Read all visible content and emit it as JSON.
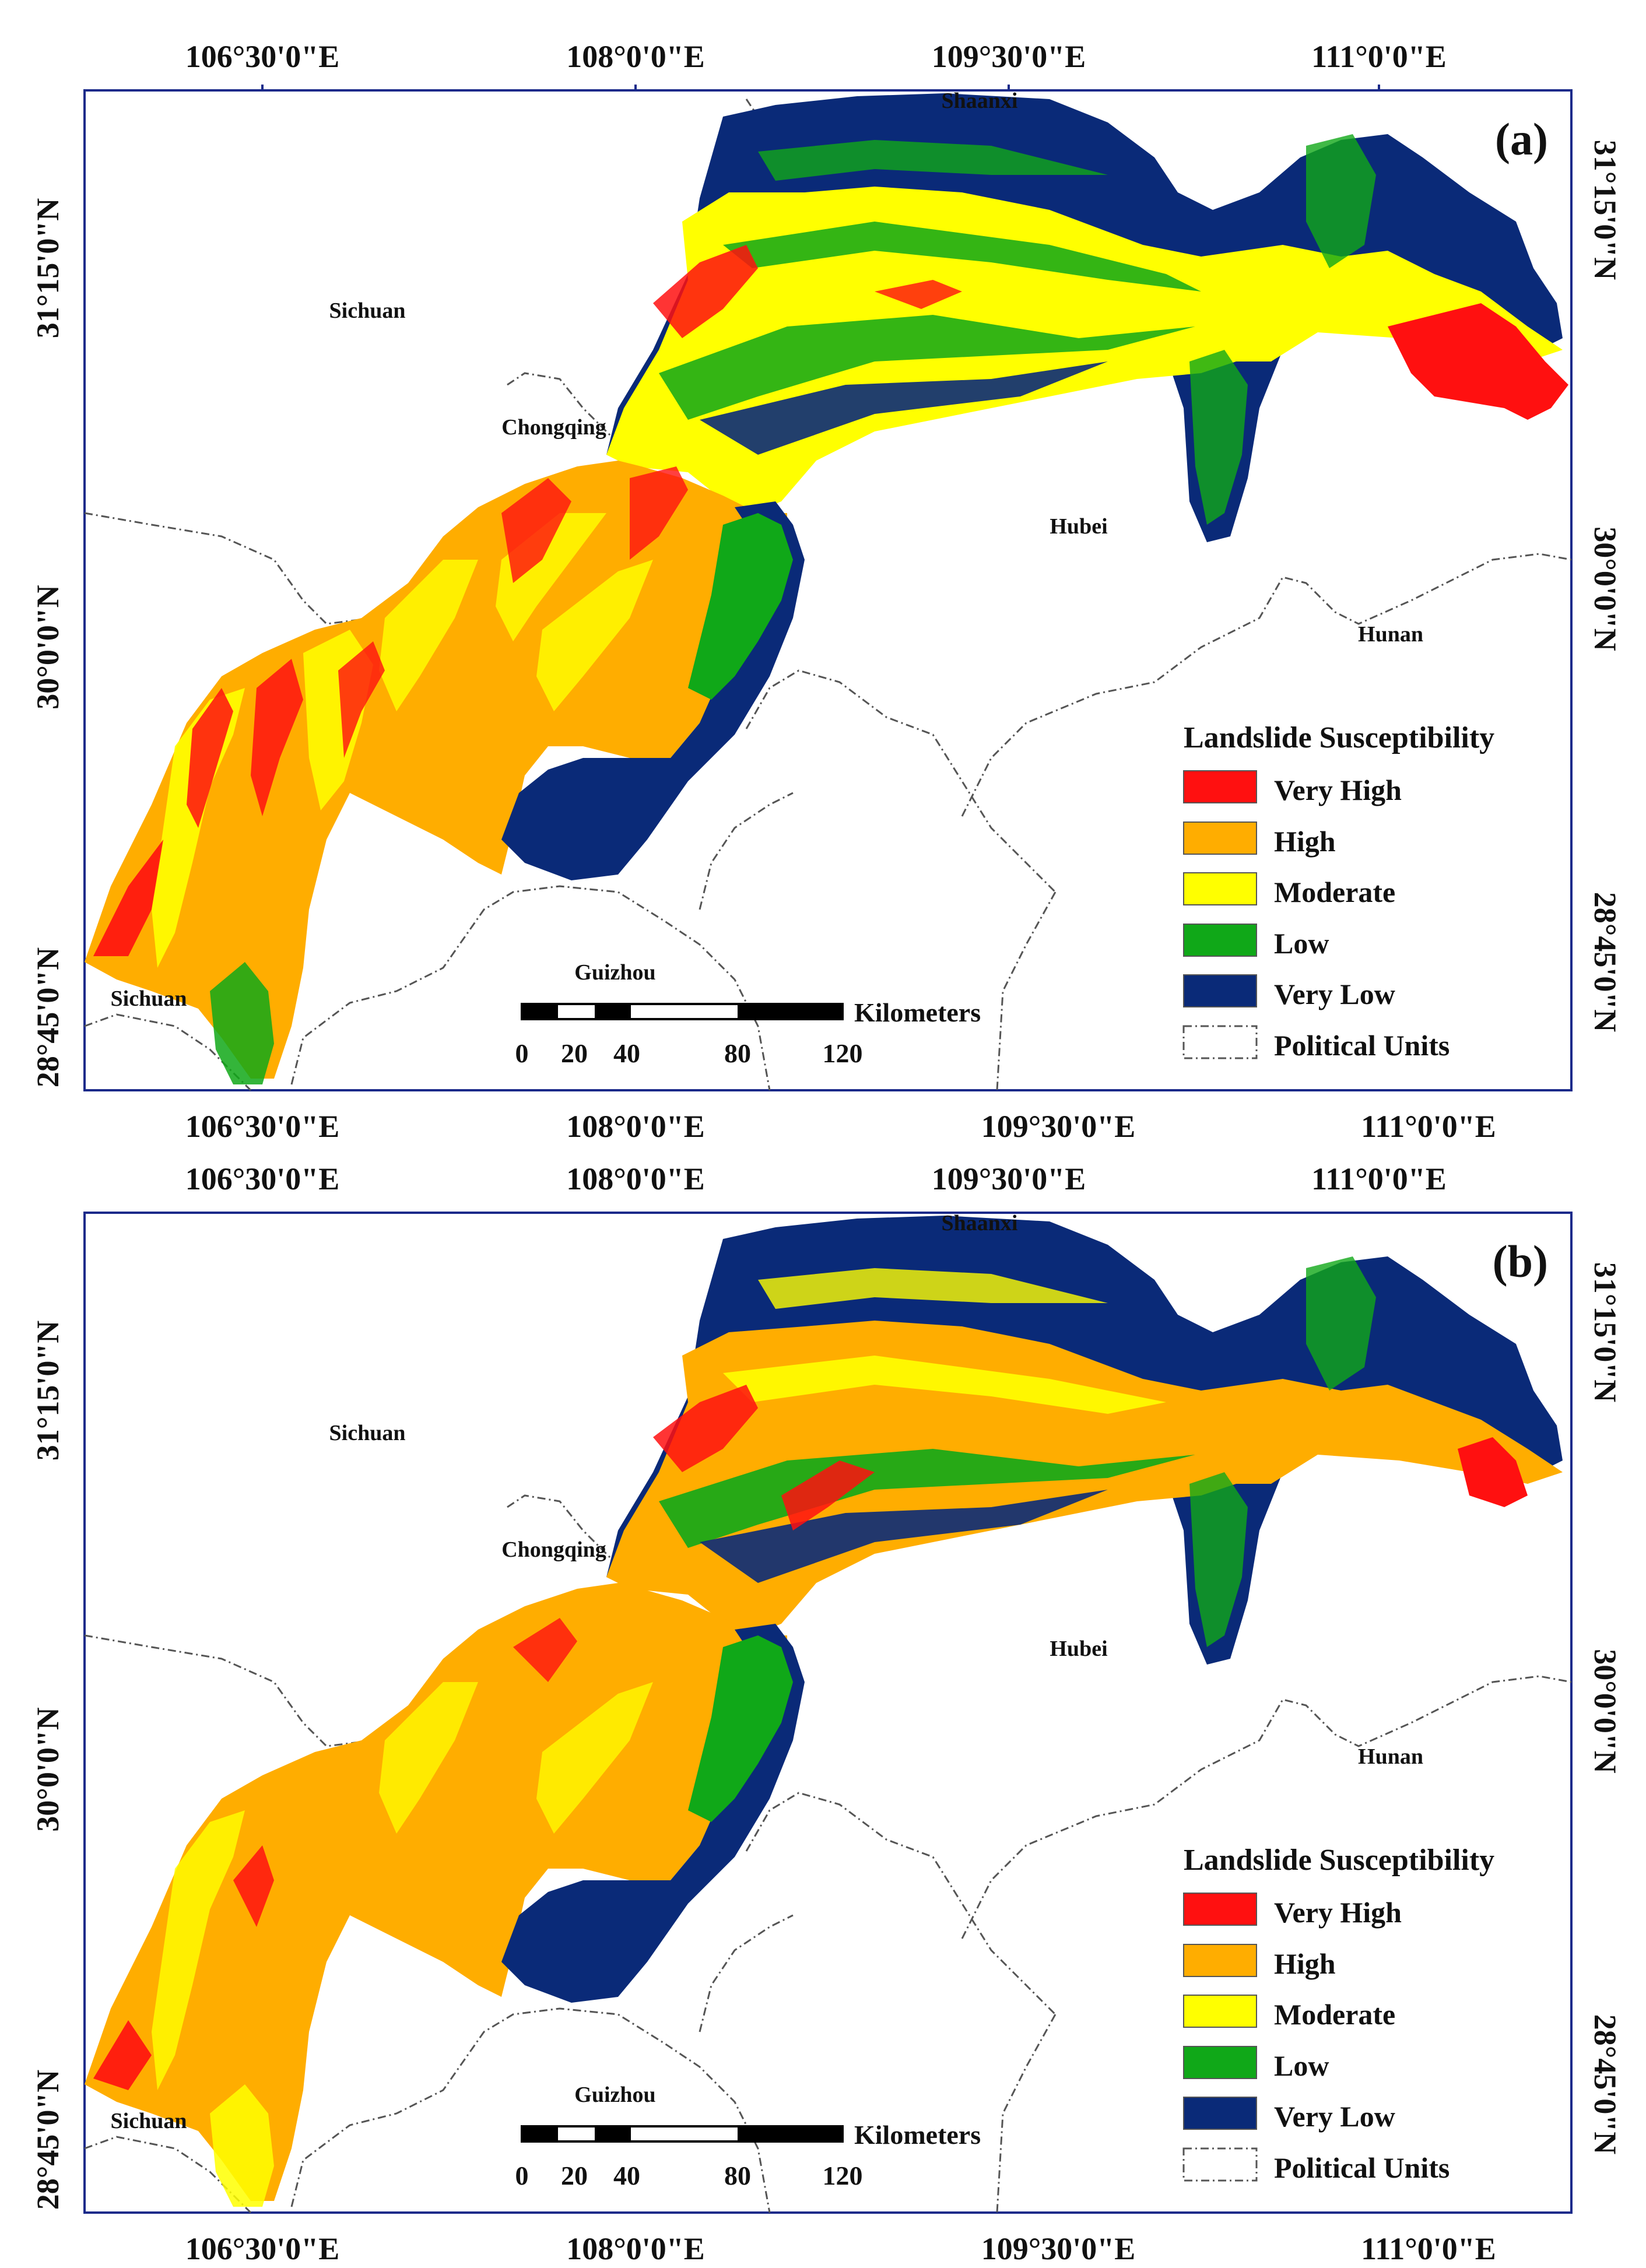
{
  "colors": {
    "very_high": "#ff1010",
    "high": "#ffad00",
    "moderate": "#ffff00",
    "low": "#10a818",
    "very_low": "#0a2a78",
    "frame": "#1a2a8a",
    "border": "#555555"
  },
  "axis_labels": {
    "lon": [
      "106°30'0\"E",
      "108°0'0\"E",
      "109°30'0\"E",
      "111°0'0\"E"
    ],
    "lat": [
      "31°15'0\"N",
      "30°0'0\"N",
      "28°45'0\"N"
    ]
  },
  "places": {
    "sichuan_north": "Sichuan",
    "chongqing": "Chongqing",
    "shaanxi": "Shaanxi",
    "hubei": "Hubei",
    "hunan": "Hunan",
    "guizhou": "Guizhou",
    "sichuan_south": "Sichuan"
  },
  "legend": {
    "title": "Landslide Susceptibility",
    "items": [
      {
        "label": "Very High",
        "color": "#ff1010"
      },
      {
        "label": "High",
        "color": "#ffad00"
      },
      {
        "label": "Moderate",
        "color": "#ffff00"
      },
      {
        "label": "Low",
        "color": "#10a818"
      },
      {
        "label": "Very Low",
        "color": "#0a2a78"
      }
    ],
    "political": "Political Units"
  },
  "scale_bar": {
    "unit": "Kilometers",
    "ticks": [
      "0",
      "20",
      "40",
      "80",
      "120"
    ]
  },
  "panels": [
    {
      "label": "(a)"
    },
    {
      "label": "(b)"
    }
  ]
}
